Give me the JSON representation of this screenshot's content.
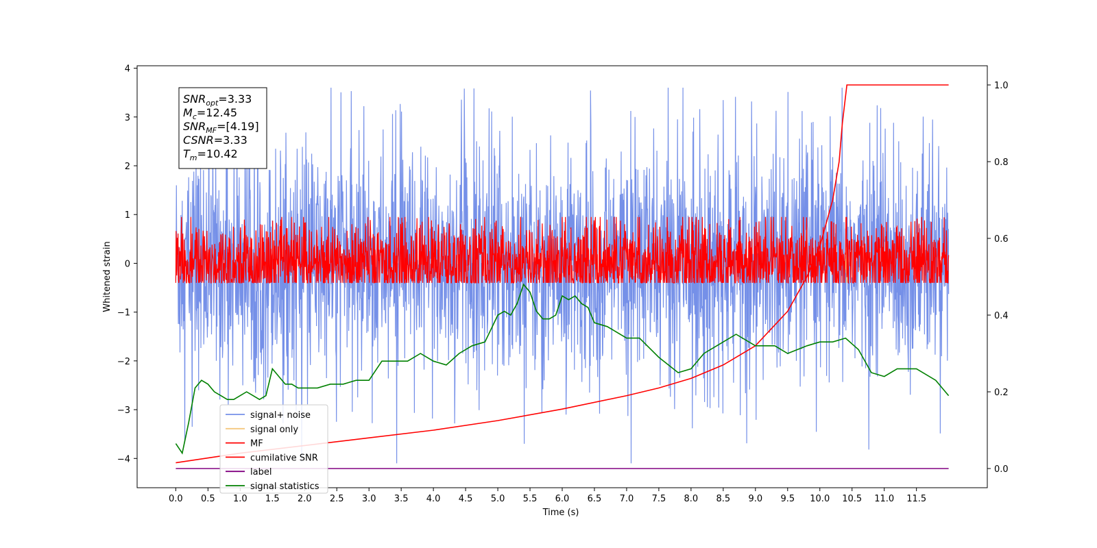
{
  "chart_data": {
    "type": "line",
    "title": "",
    "xlabel": "Time (s)",
    "ylabel": "Whitened strain",
    "xlim": [
      -0.6,
      12.6
    ],
    "ylim": [
      -4.6,
      4.05
    ],
    "y2lim": [
      -0.05,
      1.05
    ],
    "x_ticks": [
      "0.0",
      "0.5",
      "1.0",
      "1.5",
      "2.0",
      "2.5",
      "3.0",
      "3.5",
      "4.0",
      "4.5",
      "5.0",
      "5.5",
      "6.0",
      "6.5",
      "7.0",
      "7.5",
      "8.0",
      "8.5",
      "9.0",
      "9.5",
      "10.0",
      "10.5",
      "11.0",
      "11.5"
    ],
    "y_ticks": [
      "4",
      "3",
      "2",
      "1",
      "0",
      "−1",
      "−2",
      "−3",
      "−4"
    ],
    "y2_ticks": [
      "1.0",
      "0.8",
      "0.6",
      "0.4",
      "0.2",
      "0.0"
    ],
    "grid": false,
    "legend_position": "lower-left",
    "annotation": [
      {
        "base": "SNR",
        "sub": "opt",
        "value": "=3.33"
      },
      {
        "base": "M",
        "sub": "c",
        "value": "=12.45"
      },
      {
        "base": "SNR",
        "sub": "MF",
        "value": "=[4.19]"
      },
      {
        "base": "CSNR",
        "sub": "",
        "value": "=3.33"
      },
      {
        "base": "T",
        "sub": "m",
        "value": "=10.42"
      }
    ],
    "series": [
      {
        "name": "signal+ noise",
        "color": "#7590e8",
        "kind": "noise",
        "x_range": [
          0,
          12
        ],
        "mean": 0.0,
        "spread": 2.3,
        "max": 3.6,
        "min": -4.1
      },
      {
        "name": "signal only",
        "color": "#f5c77e",
        "kind": "burst",
        "x": 10.42,
        "amplitude": 0.55
      },
      {
        "name": "MF",
        "color": "#ff0000",
        "kind": "noise",
        "x_range": [
          0,
          12
        ],
        "mean": 0.0,
        "spread": 0.85,
        "max": 0.95,
        "min": -0.4
      },
      {
        "name": "cumilative SNR",
        "color": "#ff0000",
        "axis": "right",
        "x": [
          0,
          1,
          2,
          3,
          4,
          5,
          6,
          7,
          7.5,
          8,
          8.5,
          9,
          9.5,
          9.8,
          10.0,
          10.2,
          10.3,
          10.35,
          10.42,
          12.0
        ],
        "y": [
          0.015,
          0.04,
          0.06,
          0.08,
          0.1,
          0.125,
          0.155,
          0.19,
          0.21,
          0.235,
          0.27,
          0.32,
          0.41,
          0.5,
          0.58,
          0.7,
          0.8,
          0.9,
          1.0,
          1.0
        ]
      },
      {
        "name": "label",
        "color": "#800080",
        "axis": "right",
        "x": [
          0,
          12
        ],
        "y": [
          0.0,
          0.0
        ]
      },
      {
        "name": "signal statistics",
        "color": "#008000",
        "axis": "right",
        "x": [
          0.0,
          0.1,
          0.2,
          0.3,
          0.4,
          0.5,
          0.6,
          0.7,
          0.8,
          0.9,
          1.0,
          1.1,
          1.2,
          1.3,
          1.4,
          1.5,
          1.6,
          1.7,
          1.8,
          1.9,
          2.0,
          2.2,
          2.4,
          2.6,
          2.8,
          3.0,
          3.2,
          3.4,
          3.6,
          3.8,
          4.0,
          4.2,
          4.4,
          4.6,
          4.8,
          5.0,
          5.1,
          5.2,
          5.3,
          5.4,
          5.45,
          5.5,
          5.6,
          5.7,
          5.8,
          5.9,
          6.0,
          6.1,
          6.2,
          6.3,
          6.4,
          6.5,
          6.7,
          7.0,
          7.2,
          7.5,
          7.8,
          8.0,
          8.2,
          8.5,
          8.7,
          9.0,
          9.3,
          9.5,
          9.8,
          10.0,
          10.2,
          10.4,
          10.6,
          10.8,
          11.0,
          11.2,
          11.5,
          11.8,
          12.0
        ],
        "y": [
          0.065,
          0.04,
          0.12,
          0.21,
          0.23,
          0.22,
          0.2,
          0.19,
          0.18,
          0.18,
          0.19,
          0.2,
          0.19,
          0.18,
          0.19,
          0.26,
          0.24,
          0.22,
          0.22,
          0.21,
          0.21,
          0.21,
          0.22,
          0.22,
          0.23,
          0.23,
          0.28,
          0.28,
          0.28,
          0.3,
          0.28,
          0.27,
          0.3,
          0.32,
          0.33,
          0.4,
          0.41,
          0.4,
          0.43,
          0.48,
          0.47,
          0.46,
          0.41,
          0.39,
          0.39,
          0.4,
          0.45,
          0.44,
          0.45,
          0.43,
          0.42,
          0.38,
          0.37,
          0.34,
          0.34,
          0.29,
          0.25,
          0.26,
          0.3,
          0.33,
          0.35,
          0.32,
          0.32,
          0.3,
          0.32,
          0.33,
          0.33,
          0.34,
          0.31,
          0.25,
          0.24,
          0.26,
          0.26,
          0.23,
          0.19
        ]
      }
    ]
  }
}
